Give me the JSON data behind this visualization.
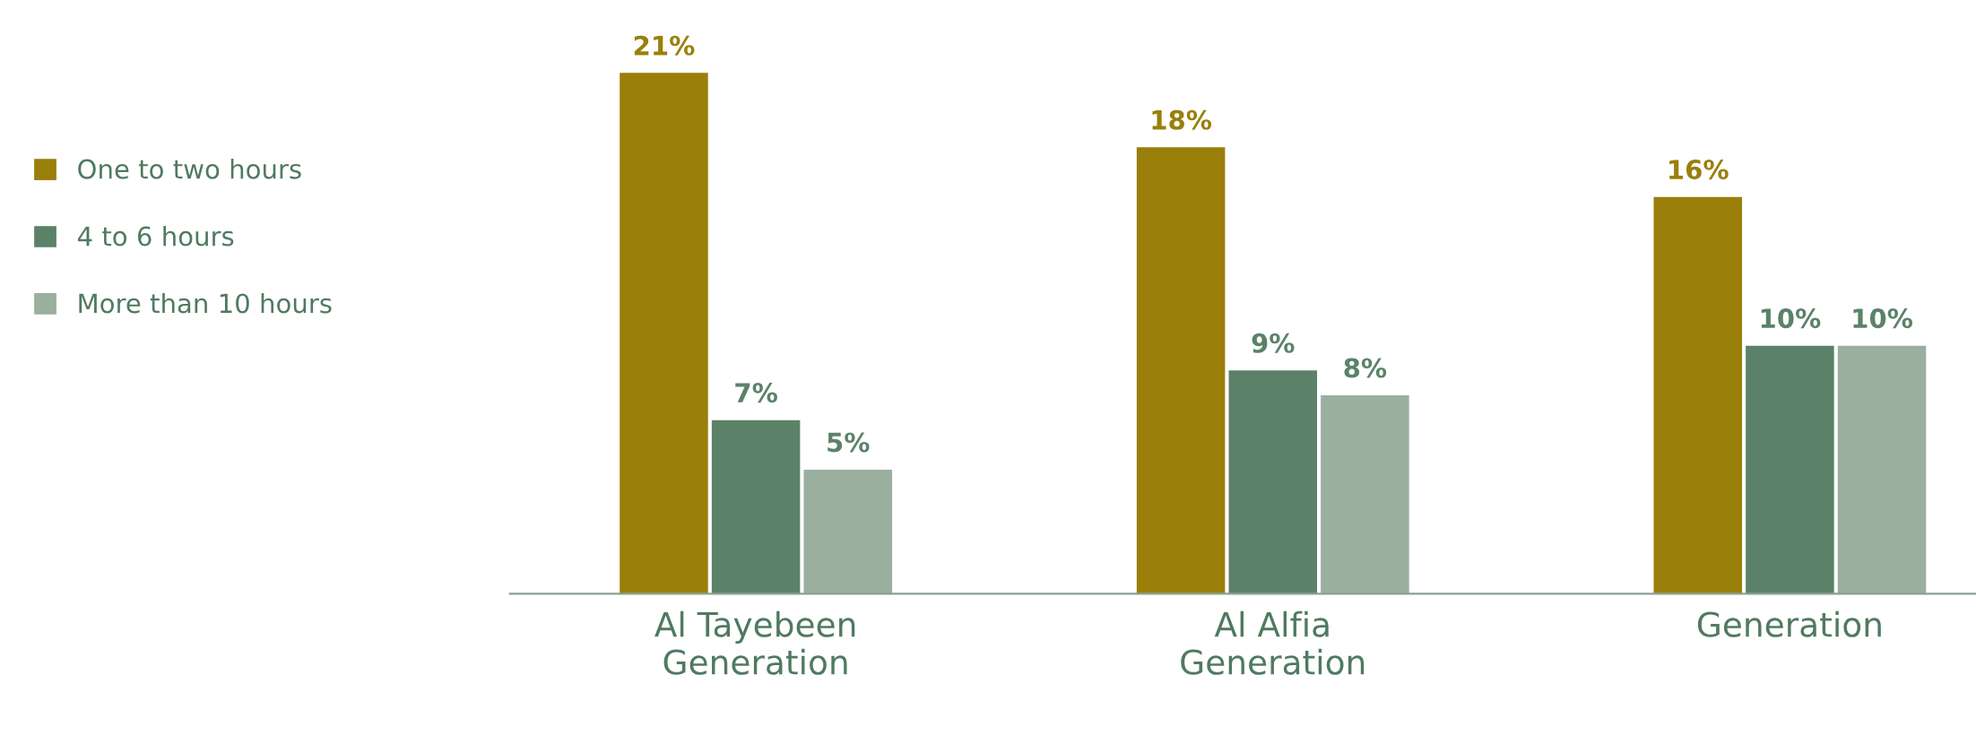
{
  "chart_data": {
    "type": "bar",
    "categories": [
      "Al Tayebeen\nGeneration",
      "Al Alfia\nGeneration",
      "Generation"
    ],
    "series": [
      {
        "name": "One to two hours",
        "color": "#9a7f0a",
        "values": [
          21,
          18,
          16
        ],
        "value_labels": [
          "21%",
          "18%",
          "16%"
        ]
      },
      {
        "name": "4 to 6 hours",
        "color": "#5b8268",
        "values": [
          7,
          9,
          10
        ],
        "value_labels": [
          "7%",
          "9%",
          "10%"
        ]
      },
      {
        "name": "More than 10 hours",
        "color": "#9aaf9e",
        "values": [
          5,
          8,
          10
        ],
        "value_labels": [
          "5%",
          "8%",
          "10%"
        ]
      }
    ],
    "legend": "left",
    "tick_labels": "x"
  }
}
